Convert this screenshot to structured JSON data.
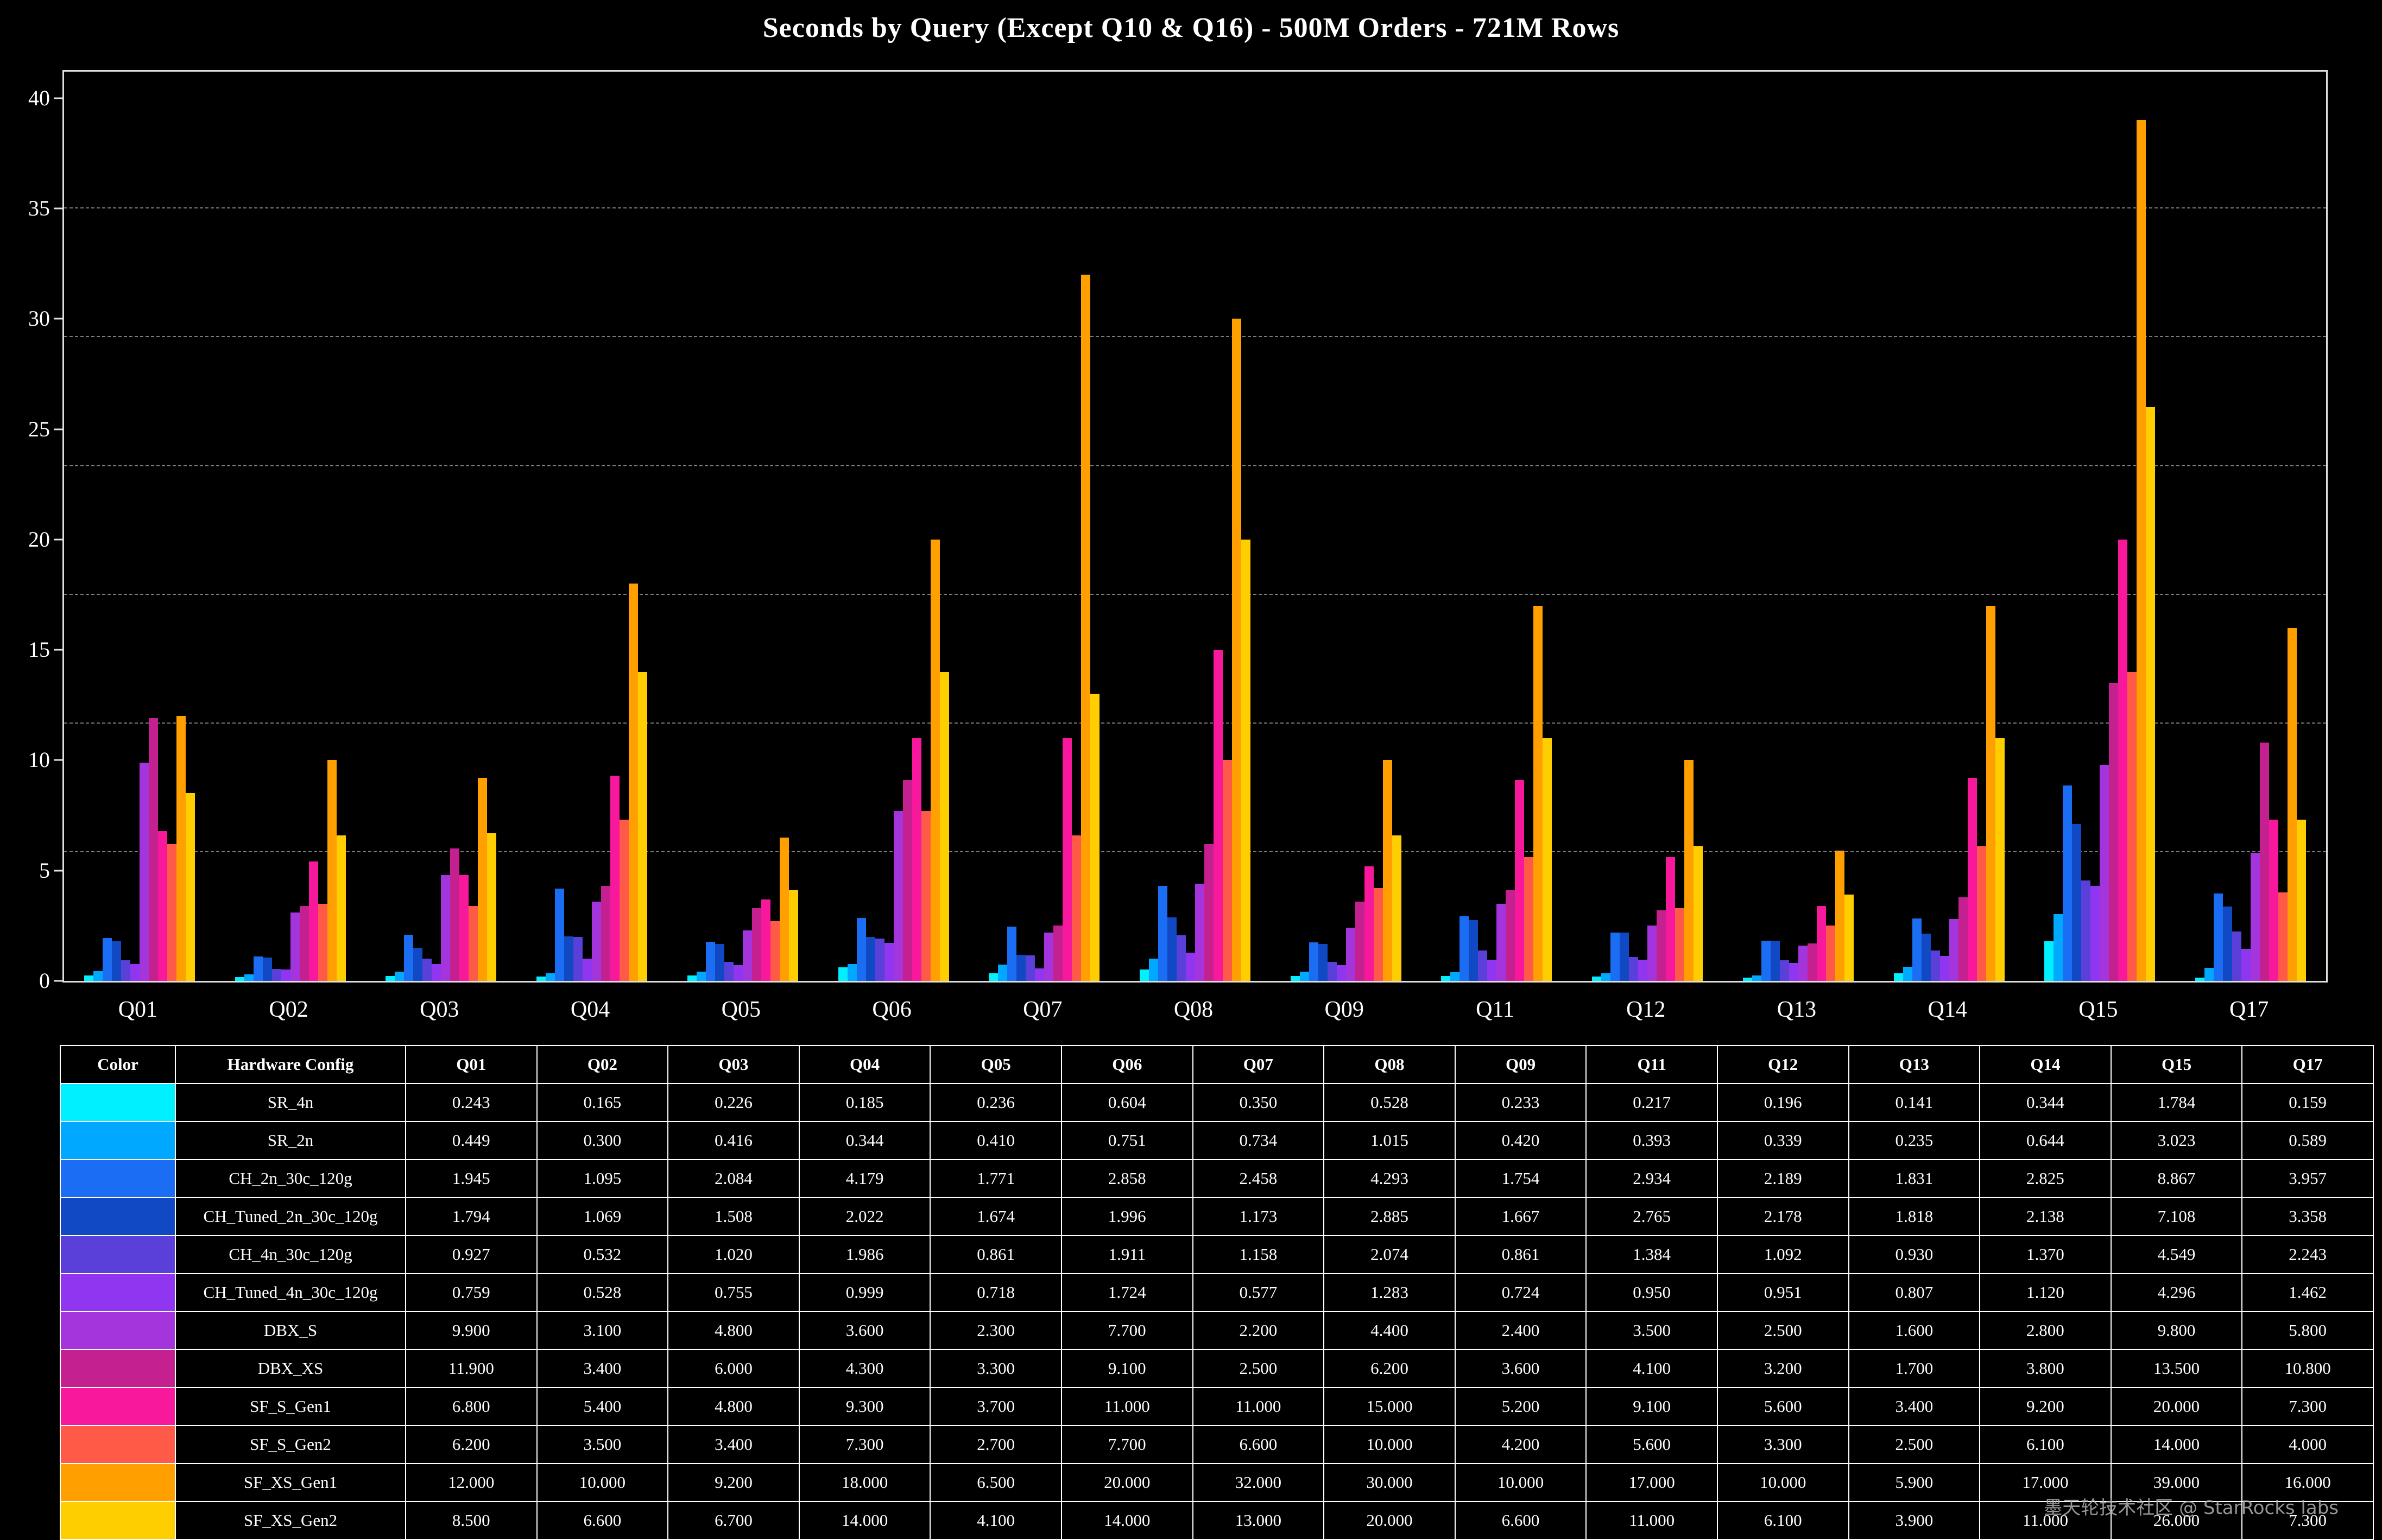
{
  "title": "Seconds by Query (Except Q10 & Q16) - 500M Orders - 721M Rows",
  "watermark": "墨天轮技术社区 @ StarRocks labs",
  "chart_data": {
    "type": "bar",
    "title": "Seconds by Query (Except Q10 & Q16) - 500M Orders - 721M Rows",
    "xlabel": "",
    "ylabel": "",
    "ylim": [
      0,
      41.2
    ],
    "y_ticks": [
      0,
      5,
      10,
      15,
      20,
      25,
      30,
      35,
      40
    ],
    "gridlines": [
      5.83,
      11.67,
      17.5,
      23.33,
      29.17,
      35
    ],
    "grid_style": "dashed horizontal",
    "legend_position": "table below chart",
    "categories": [
      "Q01",
      "Q02",
      "Q03",
      "Q04",
      "Q05",
      "Q06",
      "Q07",
      "Q08",
      "Q09",
      "Q11",
      "Q12",
      "Q13",
      "Q14",
      "Q15",
      "Q17"
    ],
    "series": [
      {
        "name": "SR_4n",
        "color": "#00f0ff",
        "values": [
          0.243,
          0.165,
          0.226,
          0.185,
          0.236,
          0.604,
          0.35,
          0.528,
          0.233,
          0.217,
          0.196,
          0.141,
          0.344,
          1.784,
          0.159
        ]
      },
      {
        "name": "SR_2n",
        "color": "#00a8ff",
        "values": [
          0.449,
          0.3,
          0.416,
          0.344,
          0.41,
          0.751,
          0.734,
          1.015,
          0.42,
          0.393,
          0.339,
          0.235,
          0.644,
          3.023,
          0.589
        ]
      },
      {
        "name": "CH_2n_30c_120g",
        "color": "#1b6ef3",
        "values": [
          1.945,
          1.095,
          2.084,
          4.179,
          1.771,
          2.858,
          2.458,
          4.293,
          1.754,
          2.934,
          2.189,
          1.831,
          2.825,
          8.867,
          3.957
        ]
      },
      {
        "name": "CH_Tuned_2n_30c_120g",
        "color": "#1148c4",
        "values": [
          1.794,
          1.069,
          1.508,
          2.022,
          1.674,
          1.996,
          1.173,
          2.885,
          1.667,
          2.765,
          2.178,
          1.818,
          2.138,
          7.108,
          3.358
        ]
      },
      {
        "name": "CH_4n_30c_120g",
        "color": "#5a3fd9",
        "values": [
          0.927,
          0.532,
          1.02,
          1.986,
          0.861,
          1.911,
          1.158,
          2.074,
          0.861,
          1.384,
          1.092,
          0.93,
          1.37,
          4.549,
          2.243
        ]
      },
      {
        "name": "CH_Tuned_4n_30c_120g",
        "color": "#9036f0",
        "values": [
          0.759,
          0.528,
          0.755,
          0.999,
          0.718,
          1.724,
          0.577,
          1.283,
          0.724,
          0.95,
          0.951,
          0.807,
          1.12,
          4.296,
          1.462
        ]
      },
      {
        "name": "DBX_S",
        "color": "#a434dc",
        "values": [
          9.9,
          3.1,
          4.8,
          3.6,
          2.3,
          7.7,
          2.2,
          4.4,
          2.4,
          3.5,
          2.5,
          1.6,
          2.8,
          9.8,
          5.8
        ]
      },
      {
        "name": "DBX_XS",
        "color": "#c5208f",
        "values": [
          11.9,
          3.4,
          6.0,
          4.3,
          3.3,
          9.1,
          2.5,
          6.2,
          3.6,
          4.1,
          3.2,
          1.7,
          3.8,
          13.5,
          10.8
        ]
      },
      {
        "name": "SF_S_Gen1",
        "color": "#f8189c",
        "values": [
          6.8,
          5.4,
          4.8,
          9.3,
          3.7,
          11.0,
          11.0,
          15.0,
          5.2,
          9.1,
          5.6,
          3.4,
          9.2,
          20.0,
          7.3
        ]
      },
      {
        "name": "SF_S_Gen2",
        "color": "#ff5a47",
        "values": [
          6.2,
          3.5,
          3.4,
          7.3,
          2.7,
          7.7,
          6.6,
          10.0,
          4.2,
          5.6,
          3.3,
          2.5,
          6.1,
          14.0,
          4.0
        ]
      },
      {
        "name": "SF_XS_Gen1",
        "color": "#ffa000",
        "values": [
          12.0,
          10.0,
          9.2,
          18.0,
          6.5,
          20.0,
          32.0,
          30.0,
          10.0,
          17.0,
          10.0,
          5.9,
          17.0,
          39.0,
          16.0
        ]
      },
      {
        "name": "SF_XS_Gen2",
        "color": "#ffce00",
        "values": [
          8.5,
          6.6,
          6.7,
          14.0,
          4.1,
          14.0,
          13.0,
          20.0,
          6.6,
          11.0,
          6.1,
          3.9,
          11.0,
          26.0,
          7.3
        ]
      }
    ]
  },
  "table": {
    "headers": [
      "Color",
      "Hardware Config",
      "Q01",
      "Q02",
      "Q03",
      "Q04",
      "Q05",
      "Q06",
      "Q07",
      "Q08",
      "Q09",
      "Q11",
      "Q12",
      "Q13",
      "Q14",
      "Q15",
      "Q17"
    ],
    "value_decimals": 3
  }
}
